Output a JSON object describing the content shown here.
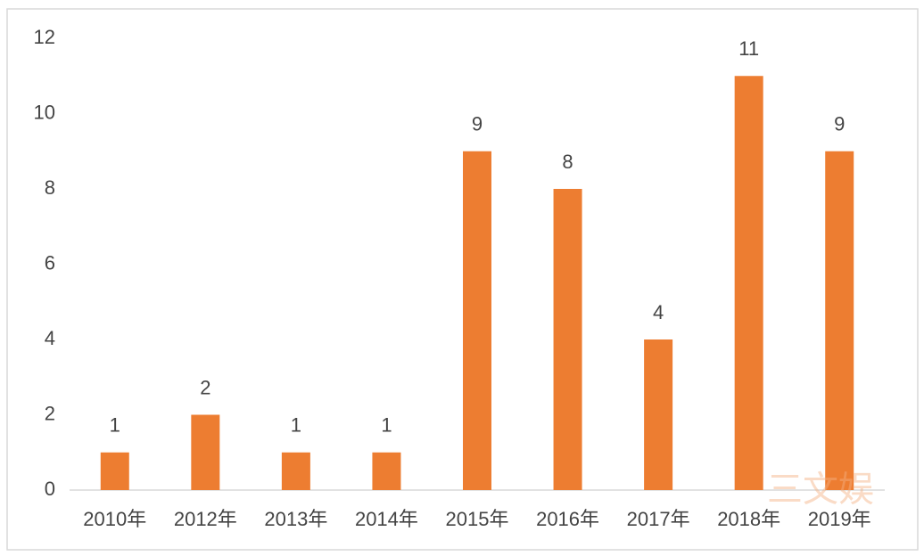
{
  "chart_data": {
    "type": "bar",
    "categories": [
      "2010年",
      "2012年",
      "2013年",
      "2014年",
      "2015年",
      "2016年",
      "2017年",
      "2018年",
      "2019年"
    ],
    "values": [
      1,
      2,
      1,
      1,
      9,
      8,
      4,
      11,
      9
    ],
    "color": "#ed7d31",
    "ylim": [
      0,
      12
    ],
    "yticks": [
      0,
      2,
      4,
      6,
      8,
      10,
      12
    ],
    "grid": false,
    "watermark": "三文娱"
  }
}
